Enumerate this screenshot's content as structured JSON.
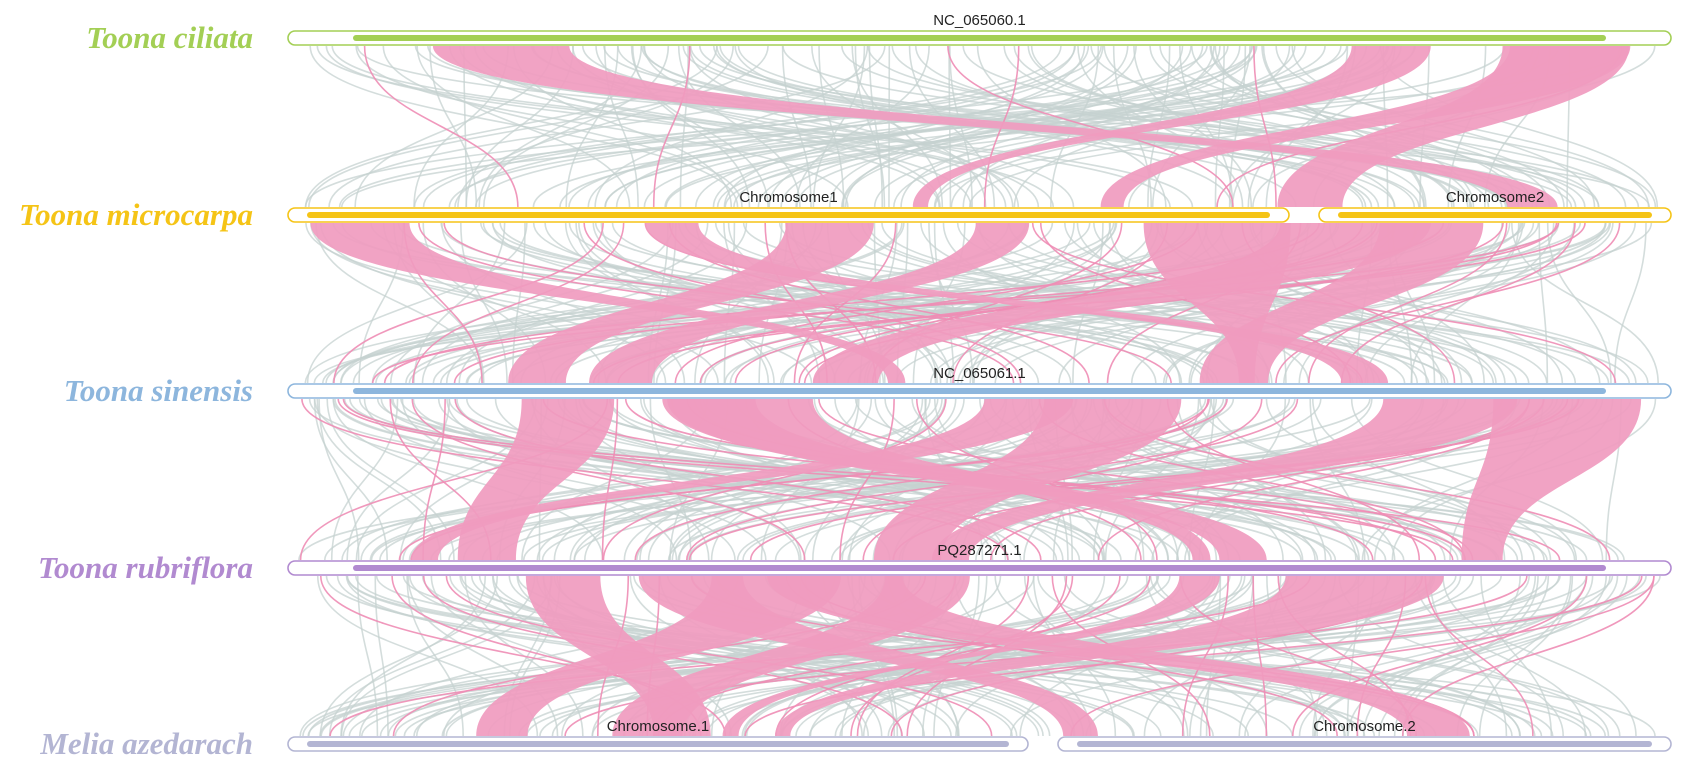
{
  "species": [
    {
      "name": "Toona ciliata",
      "color": "#a3cf55",
      "chromosomes": [
        "NC_065060.1"
      ]
    },
    {
      "name": "Toona microcarpa",
      "color": "#f5c416",
      "chromosomes": [
        "Chromosome1",
        "Chromosome2"
      ]
    },
    {
      "name": "Toona sinensis",
      "color": "#8db6dd",
      "chromosomes": [
        "NC_065061.1"
      ]
    },
    {
      "name": "Toona rubriflora",
      "color": "#b18ad0",
      "chromosomes": [
        "PQ287271.1"
      ]
    },
    {
      "name": "Melia azedarach",
      "color": "#b3b5d3",
      "chromosomes": [
        "Chromosome.1",
        "Chromosome.2"
      ]
    }
  ]
}
